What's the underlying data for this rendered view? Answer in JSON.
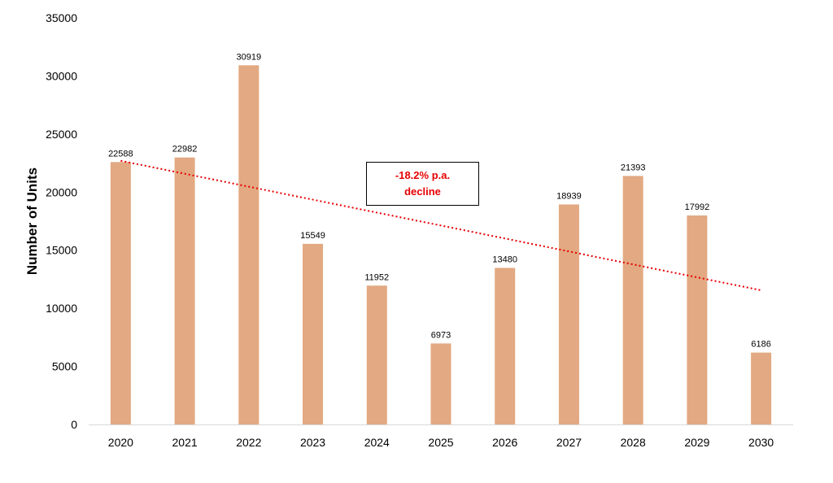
{
  "chart_data": {
    "type": "bar",
    "title": "",
    "xlabel": "",
    "ylabel": "Number of Units",
    "categories": [
      "2020",
      "2021",
      "2022",
      "2023",
      "2024",
      "2025",
      "2026",
      "2027",
      "2028",
      "2029",
      "2030"
    ],
    "values": [
      22588,
      22982,
      30919,
      15549,
      11952,
      6973,
      13480,
      18939,
      21393,
      17992,
      6186
    ],
    "ylim": [
      0,
      35000
    ],
    "yticks": [
      "0",
      "5000",
      "10000",
      "15000",
      "20000",
      "25000",
      "30000",
      "35000"
    ],
    "grid": false,
    "legend": "none",
    "bar_color": "#E2A982",
    "trendline": {
      "type": "linear",
      "style": "dotted",
      "color": "#E60000",
      "start_value": 22700,
      "end_value": 11550
    },
    "annotation": {
      "text": "-18.2% p.a. decline",
      "color": "#E60000"
    }
  }
}
